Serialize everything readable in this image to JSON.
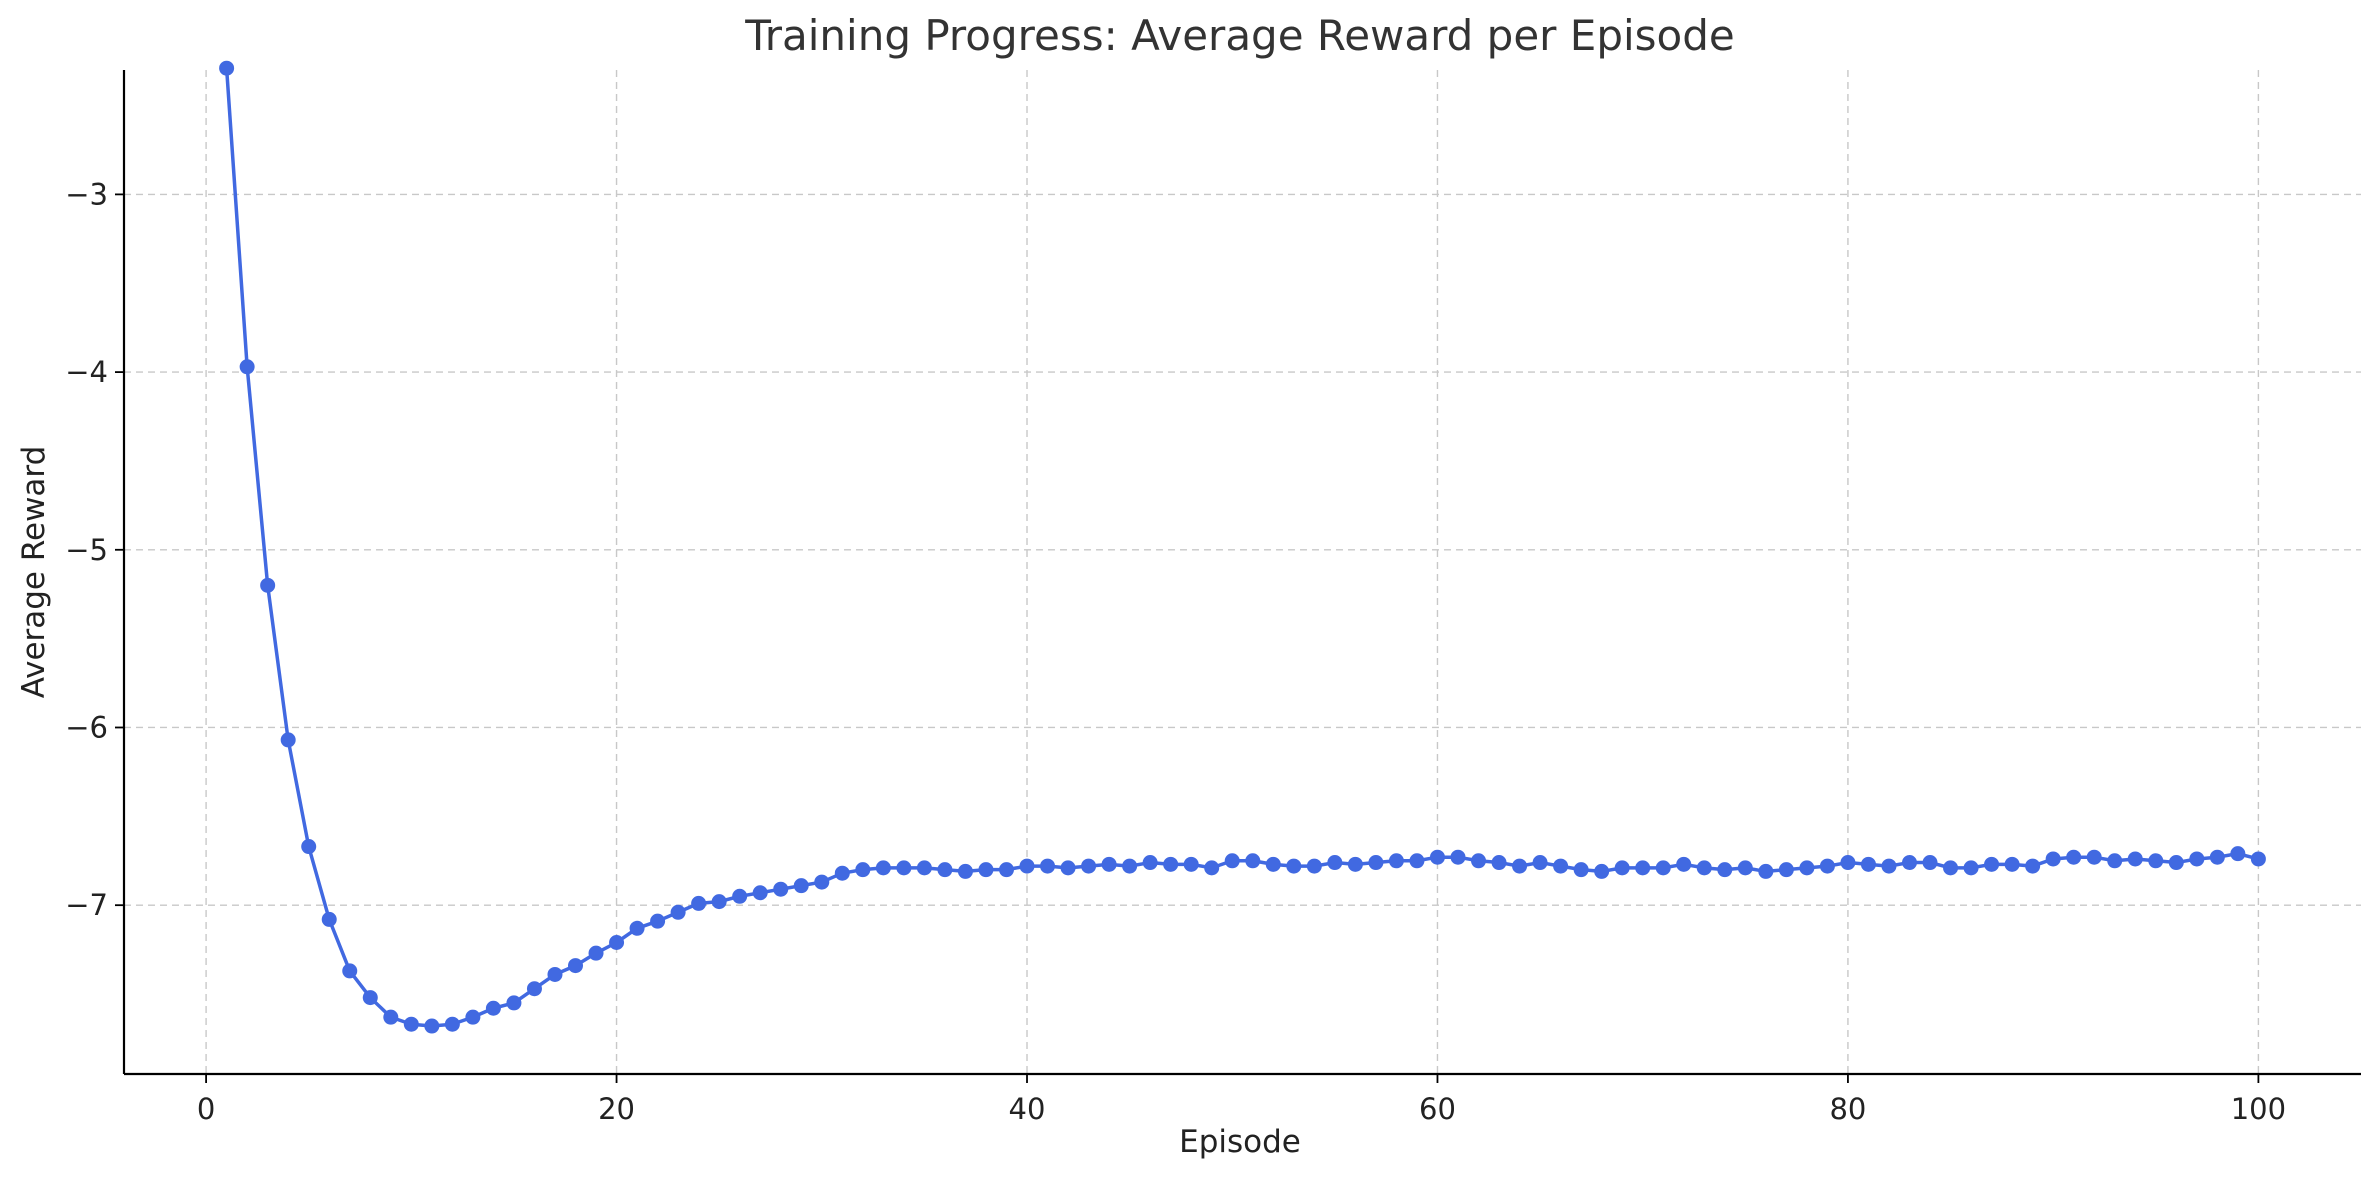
{
  "chart_data": {
    "type": "line",
    "title": "Training Progress: Average Reward per Episode",
    "xlabel": "Episode",
    "ylabel": "Average Reward",
    "xlim": [
      -4,
      105
    ],
    "ylim": [
      -7.95,
      -2.3
    ],
    "xticks": [
      0,
      20,
      40,
      60,
      80,
      100
    ],
    "xtick_labels": [
      "0",
      "20",
      "40",
      "60",
      "80",
      "100"
    ],
    "yticks": [
      -7,
      -6,
      -5,
      -4,
      -3
    ],
    "ytick_labels": [
      "−7",
      "−6",
      "−5",
      "−4",
      "−3"
    ],
    "grid": true,
    "legend": "none",
    "color": "#4169e1",
    "series": [
      {
        "x": [
          1,
          2,
          3,
          4,
          5,
          6,
          7,
          8,
          9,
          10,
          11,
          12,
          13,
          14,
          15,
          16,
          17,
          18,
          19,
          20,
          21,
          22,
          23,
          24,
          25,
          26,
          27,
          28,
          29,
          30,
          31,
          32,
          33,
          34,
          35,
          36,
          37,
          38,
          39,
          40,
          41,
          42,
          43,
          44,
          45,
          46,
          47,
          48,
          49,
          50,
          51,
          52,
          53,
          54,
          55,
          56,
          57,
          58,
          59,
          60,
          61,
          62,
          63,
          64,
          65,
          66,
          67,
          68,
          69,
          70,
          71,
          72,
          73,
          74,
          75,
          76,
          77,
          78,
          79,
          80,
          81,
          82,
          83,
          84,
          85,
          86,
          87,
          88,
          89,
          90,
          91,
          92,
          93,
          94,
          95,
          96,
          97,
          98,
          99,
          100
        ],
        "values": [
          -2.29,
          -3.97,
          -5.2,
          -6.07,
          -6.67,
          -7.08,
          -7.37,
          -7.52,
          -7.63,
          -7.67,
          -7.68,
          -7.67,
          -7.63,
          -7.58,
          -7.55,
          -7.47,
          -7.39,
          -7.34,
          -7.27,
          -7.21,
          -7.13,
          -7.09,
          -7.04,
          -6.99,
          -6.98,
          -6.95,
          -6.93,
          -6.91,
          -6.89,
          -6.87,
          -6.82,
          -6.8,
          -6.79,
          -6.79,
          -6.79,
          -6.8,
          -6.81,
          -6.8,
          -6.8,
          -6.78,
          -6.78,
          -6.79,
          -6.78,
          -6.77,
          -6.78,
          -6.76,
          -6.77,
          -6.77,
          -6.79,
          -6.75,
          -6.75,
          -6.77,
          -6.78,
          -6.78,
          -6.76,
          -6.77,
          -6.76,
          -6.75,
          -6.75,
          -6.73,
          -6.73,
          -6.75,
          -6.76,
          -6.78,
          -6.76,
          -6.78,
          -6.8,
          -6.81,
          -6.79,
          -6.79,
          -6.79,
          -6.77,
          -6.79,
          -6.8,
          -6.79,
          -6.81,
          -6.8,
          -6.79,
          -6.78,
          -6.76,
          -6.77,
          -6.78,
          -6.76,
          -6.76,
          -6.79,
          -6.79,
          -6.77,
          -6.77,
          -6.78,
          -6.74,
          -6.73,
          -6.73,
          -6.75,
          -6.74,
          -6.75,
          -6.76,
          -6.74,
          -6.73,
          -6.71,
          -6.74
        ]
      }
    ]
  }
}
